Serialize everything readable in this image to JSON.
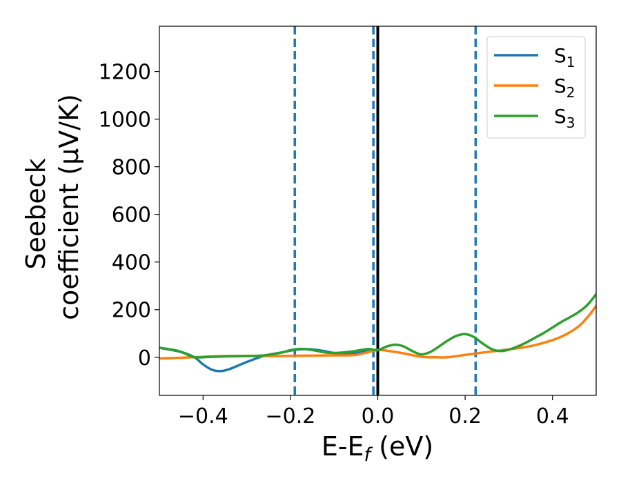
{
  "chart_data": {
    "type": "line",
    "title": "",
    "xlabel": {
      "main": "E-E",
      "sub": "f",
      "suffix": " (eV)"
    },
    "ylabel": {
      "line1": "Seebeck",
      "line2": "coefficient  (μV/K)"
    },
    "xlim": [
      -0.5,
      0.5
    ],
    "ylim": [
      -160,
      1390
    ],
    "xticks": [
      -0.4,
      -0.2,
      0.0,
      0.2,
      0.4
    ],
    "xtick_labels": [
      "−0.4",
      "−0.2",
      "0.0",
      "0.2",
      "0.4"
    ],
    "yticks": [
      0,
      200,
      400,
      600,
      800,
      1000,
      1200
    ],
    "ytick_labels": [
      "0",
      "200",
      "400",
      "600",
      "800",
      "1000",
      "1200"
    ],
    "grid": false,
    "legend_position": "top-right",
    "vlines": [
      {
        "x": -0.19,
        "style": "dashed",
        "color": "#1f77b4"
      },
      {
        "x": -0.01,
        "style": "dashed",
        "color": "#1f77b4"
      },
      {
        "x": 0.0,
        "style": "solid",
        "color": "#000000"
      },
      {
        "x": 0.224,
        "style": "dashed",
        "color": "#1f77b4"
      }
    ],
    "series": [
      {
        "name": {
          "main": "S",
          "sub": "1"
        },
        "color": "#1f77b4",
        "x": [
          -0.5,
          -0.45,
          -0.42,
          -0.4,
          -0.38,
          -0.36,
          -0.34,
          -0.32,
          -0.3,
          -0.28,
          -0.26,
          -0.24,
          -0.22,
          -0.2,
          -0.18,
          -0.16,
          -0.14,
          -0.12,
          -0.1,
          -0.08,
          -0.06,
          -0.04,
          -0.02,
          0.0
        ],
        "y": [
          40,
          22,
          0,
          -30,
          -52,
          -58,
          -50,
          -35,
          -20,
          -6,
          6,
          14,
          20,
          28,
          33,
          34,
          31,
          25,
          18,
          15,
          15,
          20,
          27,
          32
        ]
      },
      {
        "name": {
          "main": "S",
          "sub": "2"
        },
        "color": "#ff7f0e",
        "x": [
          -0.5,
          -0.45,
          -0.4,
          -0.35,
          -0.3,
          -0.25,
          -0.2,
          -0.15,
          -0.1,
          -0.05,
          0.0,
          0.03,
          0.06,
          0.1,
          0.13,
          0.16,
          0.2,
          0.25,
          0.3,
          0.35,
          0.4,
          0.43,
          0.46,
          0.48,
          0.5
        ],
        "y": [
          -5,
          -2,
          2,
          5,
          6,
          5,
          6,
          7,
          8,
          10,
          30,
          25,
          16,
          2,
          0,
          0,
          10,
          22,
          33,
          47,
          72,
          95,
          130,
          168,
          215
        ]
      },
      {
        "name": {
          "main": "S",
          "sub": "3"
        },
        "color": "#2ca02c",
        "x": [
          -0.5,
          -0.46,
          -0.44,
          -0.42,
          -0.38,
          -0.34,
          -0.3,
          -0.26,
          -0.22,
          -0.2,
          -0.18,
          -0.16,
          -0.14,
          -0.12,
          -0.1,
          -0.08,
          -0.06,
          -0.04,
          -0.02,
          0.0,
          0.02,
          0.04,
          0.06,
          0.08,
          0.1,
          0.12,
          0.14,
          0.16,
          0.18,
          0.2,
          0.22,
          0.24,
          0.26,
          0.28,
          0.3,
          0.32,
          0.34,
          0.36,
          0.38,
          0.4,
          0.42,
          0.44,
          0.46,
          0.48,
          0.5
        ],
        "y": [
          40,
          28,
          15,
          0,
          2,
          4,
          5,
          8,
          20,
          30,
          35,
          33,
          27,
          20,
          18,
          20,
          24,
          30,
          35,
          30,
          45,
          53,
          45,
          25,
          12,
          22,
          45,
          70,
          90,
          97,
          85,
          58,
          35,
          26,
          32,
          45,
          62,
          82,
          102,
          125,
          148,
          168,
          190,
          220,
          265
        ]
      }
    ]
  }
}
